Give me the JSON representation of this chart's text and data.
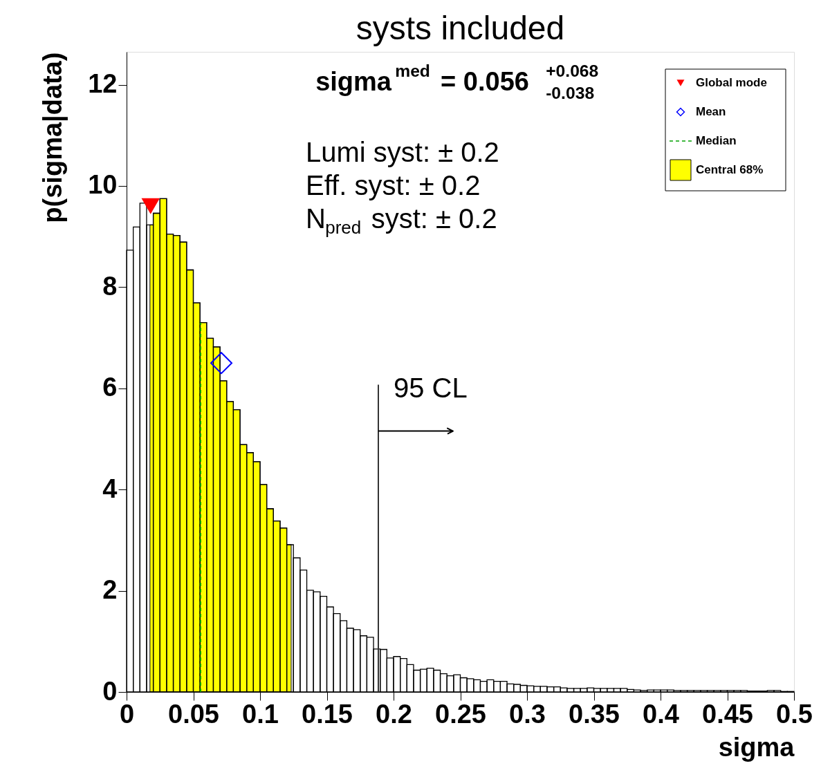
{
  "chart_data": {
    "type": "histogram",
    "title": "systs included",
    "xlabel": "sigma",
    "ylabel": "p(sigma|data)",
    "bins": [
      0,
      0.005,
      0.01,
      0.015,
      0.02,
      0.025,
      0.03,
      0.035,
      0.04,
      0.045,
      0.05,
      0.055,
      0.06,
      0.065,
      0.07,
      0.075,
      0.08,
      0.085,
      0.09,
      0.095,
      0.1,
      0.105,
      0.11,
      0.115,
      0.12,
      0.125,
      0.13,
      0.135,
      0.14,
      0.145,
      0.15,
      0.155,
      0.16,
      0.165,
      0.17,
      0.175,
      0.18,
      0.185,
      0.19,
      0.195,
      0.2,
      0.205,
      0.21,
      0.215,
      0.22,
      0.225,
      0.23,
      0.235,
      0.24,
      0.245,
      0.25,
      0.255,
      0.26,
      0.265,
      0.27,
      0.275,
      0.28,
      0.285,
      0.29,
      0.295,
      0.3,
      0.305,
      0.31,
      0.315,
      0.32,
      0.325,
      0.33,
      0.335,
      0.34,
      0.345,
      0.35,
      0.355,
      0.36,
      0.365,
      0.37,
      0.375,
      0.38,
      0.385,
      0.39,
      0.395,
      0.4,
      0.405,
      0.41,
      0.415,
      0.42,
      0.425,
      0.43,
      0.435,
      0.44,
      0.445,
      0.45,
      0.455,
      0.46,
      0.465,
      0.47,
      0.475,
      0.48,
      0.485,
      0.49,
      0.495,
      0.5
    ],
    "values": [
      8.73,
      9.19,
      9.66,
      9.23,
      9.46,
      9.75,
      9.05,
      9.02,
      8.89,
      8.34,
      7.69,
      7.3,
      6.99,
      6.82,
      6.15,
      5.74,
      5.58,
      4.89,
      4.73,
      4.55,
      4.1,
      3.62,
      3.38,
      3.24,
      2.91,
      2.65,
      2.41,
      2.01,
      1.98,
      1.89,
      1.68,
      1.55,
      1.41,
      1.26,
      1.23,
      1.11,
      1.08,
      0.85,
      0.84,
      0.67,
      0.7,
      0.66,
      0.54,
      0.43,
      0.45,
      0.47,
      0.43,
      0.36,
      0.32,
      0.34,
      0.28,
      0.26,
      0.24,
      0.21,
      0.24,
      0.21,
      0.21,
      0.16,
      0.15,
      0.13,
      0.12,
      0.11,
      0.11,
      0.1,
      0.1,
      0.08,
      0.07,
      0.07,
      0.07,
      0.08,
      0.07,
      0.07,
      0.07,
      0.07,
      0.07,
      0.05,
      0.04,
      0.03,
      0.04,
      0.04,
      0.04,
      0.04,
      0.03,
      0.03,
      0.03,
      0.03,
      0.03,
      0.03,
      0.03,
      0.03,
      0.03,
      0.03,
      0.03,
      0.02,
      0.02,
      0.02,
      0.03,
      0.03,
      0.01,
      0.01
    ],
    "color": "#000000",
    "xlim": [
      0,
      0.5
    ],
    "ylim": [
      0,
      12.65
    ],
    "xticks": [
      0,
      0.05,
      0.1,
      0.15,
      0.2,
      0.25,
      0.3,
      0.35,
      0.4,
      0.45,
      0.5
    ],
    "yticks": [
      0,
      2,
      4,
      6,
      8,
      10,
      12
    ],
    "ref_lines": [
      {
        "axis": "x",
        "value": 0.0554,
        "label": "Median",
        "color": "#00a000",
        "line_style": "dashed"
      },
      {
        "axis": "x",
        "value": 0.1886,
        "label": "95 CL",
        "color": "#333333"
      }
    ],
    "series": [
      {
        "name": "Global mode",
        "type": "scatter",
        "marker": "triangle",
        "color": "#ff0000",
        "x": [
          0.018
        ],
        "values": [
          9.6
        ]
      },
      {
        "name": "Mean",
        "type": "scatter",
        "marker": "diamond",
        "color": "#0000ff",
        "x": [
          0.071
        ],
        "values": [
          6.5
        ]
      },
      {
        "name": "Central 68%",
        "type": "area",
        "color": "#ffff00",
        "x": [
          0.0175,
          0.02,
          0.025,
          0.03,
          0.035,
          0.04,
          0.045,
          0.05,
          0.055,
          0.06,
          0.065,
          0.07,
          0.075,
          0.08,
          0.085,
          0.09,
          0.095,
          0.1,
          0.105,
          0.11,
          0.115,
          0.12,
          0.1233
        ],
        "values": [
          9.23,
          9.46,
          9.75,
          9.05,
          9.02,
          8.89,
          8.34,
          7.69,
          7.3,
          6.99,
          6.82,
          6.15,
          5.74,
          5.58,
          4.89,
          4.73,
          4.55,
          4.1,
          3.62,
          3.38,
          3.24,
          2.91,
          2.91
        ]
      }
    ],
    "annotations": [
      "sigma$^{med}$ = 0.056 $^{+0.068}$$_{-0.038}$",
      "Lumi syst: ± 0.2",
      "Eff. syst: ± 0.2",
      "N$_{pred}$ syst: ± 0.2"
    ],
    "legend": "top right",
    "grid": false
  }
}
